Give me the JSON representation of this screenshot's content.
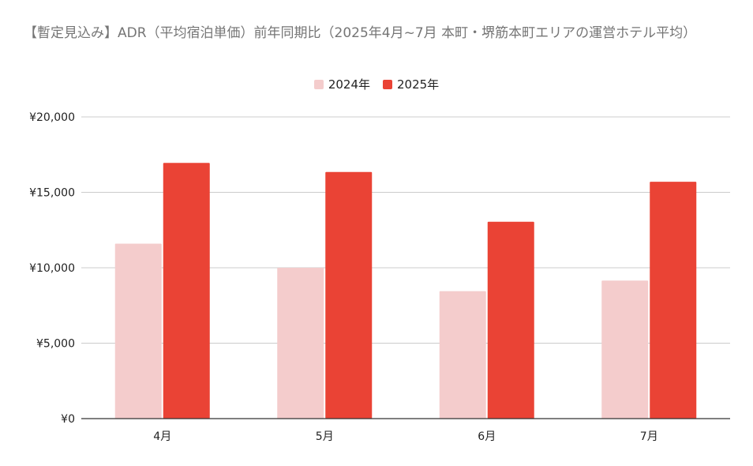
{
  "chart_data": {
    "type": "bar",
    "title": "【暫定見込み】ADR（平均宿泊単価）前年同期比（2025年4月~7月 本町・堺筋本町エリアの運営ホテル平均）",
    "categories": [
      "4月",
      "5月",
      "6月",
      "7月"
    ],
    "series": [
      {
        "name": "2024年",
        "color": "#f4cccc",
        "values": [
          11600,
          10000,
          8450,
          9150
        ]
      },
      {
        "name": "2025年",
        "color": "#ea4335",
        "values": [
          16950,
          16350,
          13050,
          15700
        ]
      }
    ],
    "ylim": [
      0,
      20000
    ],
    "yticks": [
      "¥0",
      "¥5,000",
      "¥10,000",
      "¥15,000",
      "¥20,000"
    ],
    "xlabel": "",
    "ylabel": "",
    "legend_position": "top-center",
    "grid": true
  }
}
